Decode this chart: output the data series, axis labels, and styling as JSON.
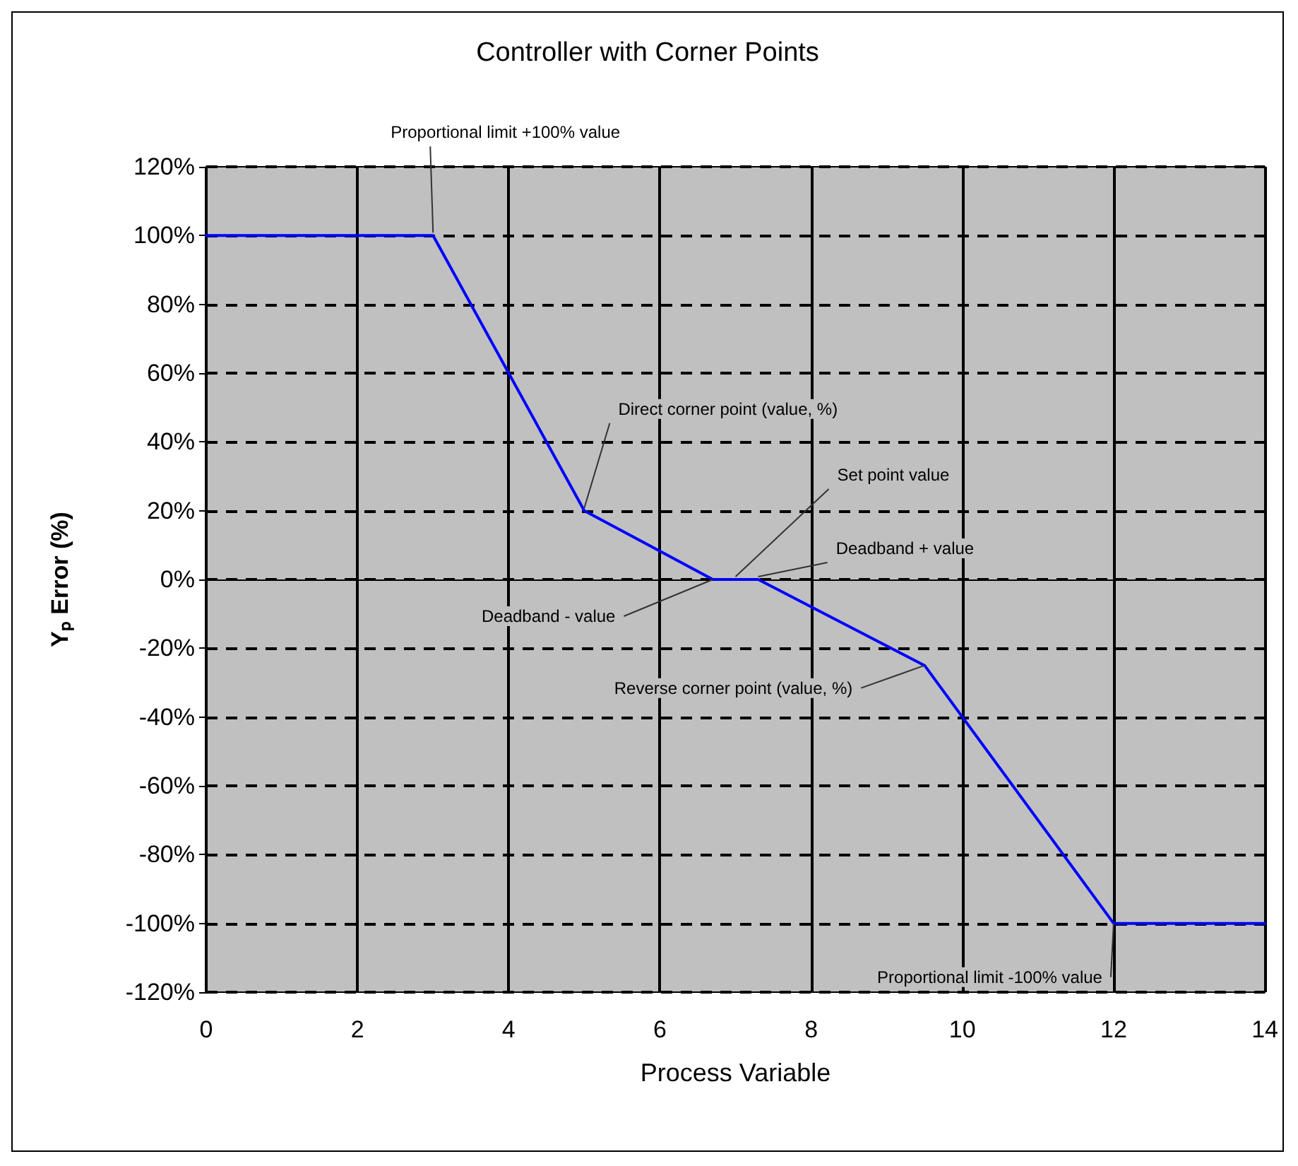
{
  "chart_data": {
    "type": "line",
    "title": "Controller with Corner Points",
    "xlabel": "Process Variable",
    "ylabel": "Yₚ Error (%)",
    "x": [
      0,
      3,
      5,
      6.7,
      7.3,
      9.5,
      12,
      14
    ],
    "series": [
      {
        "color": "#0000ff",
        "values": [
          100,
          100,
          20,
          0,
          0,
          -25,
          -100,
          -100
        ]
      }
    ],
    "xlim": [
      0,
      14
    ],
    "xticks": [
      0,
      2,
      4,
      6,
      8,
      10,
      12,
      14
    ],
    "ylim": [
      -120,
      120
    ],
    "yticks": [
      {
        "value": -120,
        "label": "-120%"
      },
      {
        "value": -100,
        "label": "-100%"
      },
      {
        "value": -80,
        "label": "-80%"
      },
      {
        "value": -60,
        "label": "-60%"
      },
      {
        "value": -40,
        "label": "-40%"
      },
      {
        "value": -20,
        "label": "-20%"
      },
      {
        "value": 0,
        "label": "0%"
      },
      {
        "value": 20,
        "label": "20%"
      },
      {
        "value": 40,
        "label": "40%"
      },
      {
        "value": 60,
        "label": "60%"
      },
      {
        "value": 80,
        "label": "80%"
      },
      {
        "value": 100,
        "label": "100%"
      },
      {
        "value": 120,
        "label": "120%"
      }
    ],
    "grid": true,
    "marker": "none",
    "line_style": "solid",
    "annotations": [
      {
        "text": "Proportional limit +100% value",
        "x": 3,
        "y": 100
      },
      {
        "text": "Direct corner point (value, %)",
        "x": 5,
        "y": 20
      },
      {
        "text": "Set point value",
        "x": 7,
        "y": 0
      },
      {
        "text": "Deadband + value",
        "x": 7.3,
        "y": 0
      },
      {
        "text": "Deadband - value",
        "x": 6.7,
        "y": 0
      },
      {
        "text": "Reverse corner point (value, %)",
        "x": 9.5,
        "y": -25
      },
      {
        "text": "Proportional limit -100% value",
        "x": 12,
        "y": -100
      }
    ]
  }
}
